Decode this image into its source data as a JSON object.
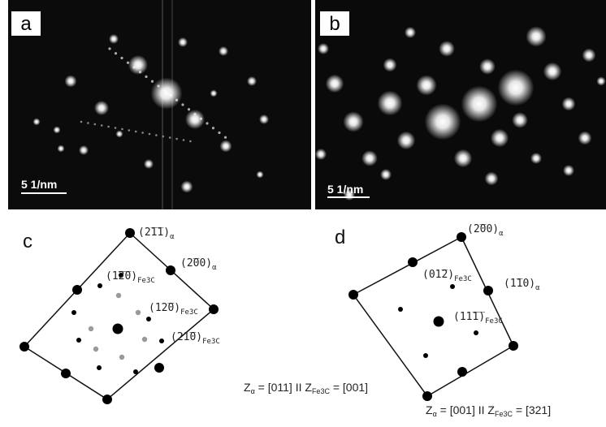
{
  "panels": [
    {
      "label": "a",
      "scale_bar": "5 1/nm"
    },
    {
      "label": "b",
      "scale_bar": "5 1/nm"
    },
    {
      "label": "c",
      "annotations": [
        {
          "index": "(2̅1̅1)",
          "phase": "α"
        },
        {
          "index": "(2̅00)",
          "phase": "α"
        },
        {
          "index": "(1̅2̅0)",
          "phase": "Fe3C"
        },
        {
          "index": "(12̅0)",
          "phase": "Fe3C"
        },
        {
          "index": "(21̅0)",
          "phase": "Fe3C"
        }
      ],
      "zone_axis": {
        "parts": [
          "Z",
          "α",
          " = [011] II Z",
          "Fe3C",
          " = [001]"
        ]
      }
    },
    {
      "label": "d",
      "annotations": [
        {
          "index": "(2̅00)",
          "phase": "α"
        },
        {
          "index": "(01̅2)",
          "phase": "Fe3C"
        },
        {
          "index": "(1̅10)",
          "phase": "α"
        },
        {
          "index": "(11̅1̅)",
          "phase": "Fe3C"
        }
      ],
      "zone_axis": {
        "parts": [
          "Z",
          "α",
          " = [001] II Z",
          "Fe3C",
          " = [321]"
        ]
      }
    }
  ]
}
